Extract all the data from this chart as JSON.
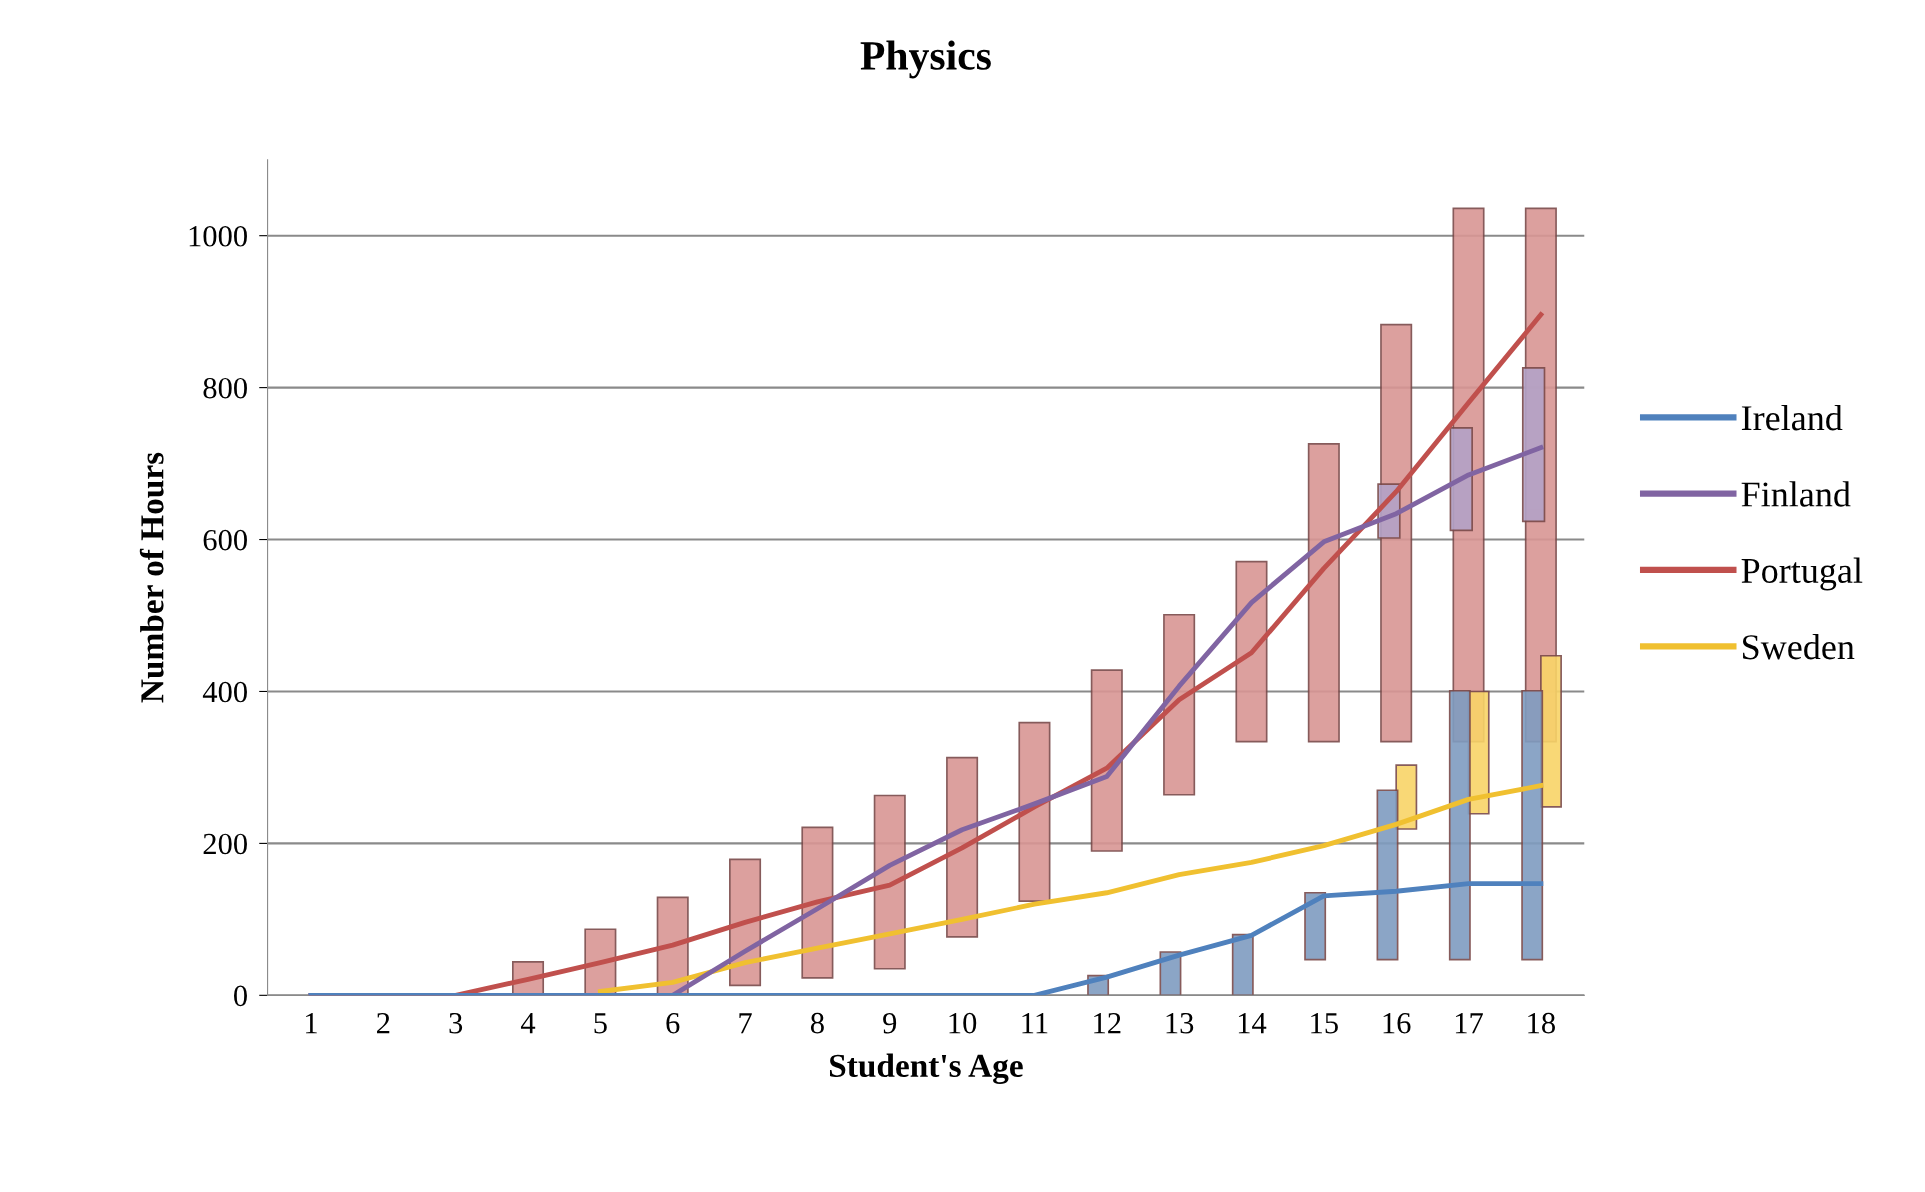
{
  "chart_data": {
    "type": "line",
    "title": "Physics",
    "xlabel": "Student's Age",
    "ylabel": "Number of Hours",
    "categories": [
      "1",
      "2",
      "3",
      "4",
      "5",
      "6",
      "7",
      "8",
      "9",
      "10",
      "11",
      "12",
      "13",
      "14",
      "15",
      "16",
      "17",
      "18"
    ],
    "ylim": [
      0,
      1100
    ],
    "yticks": [
      0,
      200,
      400,
      600,
      800,
      1000
    ],
    "grid": "y",
    "legend": "right",
    "marker": "none",
    "line_style": "solid",
    "series": [
      {
        "type": "bar",
        "color": "#d99694",
        "base": [
          null,
          null,
          null,
          0,
          0,
          0,
          13,
          23,
          35,
          77,
          124,
          190,
          264,
          334,
          334,
          334,
          334,
          334
        ],
        "values": [
          null,
          null,
          null,
          44,
          87,
          129,
          166,
          198,
          228,
          236,
          235,
          238,
          237,
          237,
          392,
          549,
          702,
          702
        ]
      },
      {
        "type": "bar",
        "color": "#b3a2c7",
        "base": [
          null,
          null,
          null,
          null,
          null,
          null,
          null,
          null,
          null,
          null,
          null,
          null,
          null,
          null,
          null,
          602,
          612,
          624
        ],
        "values": [
          null,
          null,
          null,
          null,
          null,
          null,
          null,
          null,
          null,
          null,
          null,
          null,
          null,
          null,
          null,
          71,
          135,
          202
        ]
      },
      {
        "type": "bar",
        "color": "#f9d468",
        "base": [
          null,
          null,
          null,
          null,
          null,
          null,
          null,
          null,
          null,
          null,
          null,
          null,
          null,
          null,
          null,
          219,
          239,
          248
        ],
        "values": [
          null,
          null,
          null,
          null,
          null,
          null,
          null,
          null,
          null,
          null,
          null,
          null,
          null,
          null,
          null,
          84,
          161,
          199
        ]
      },
      {
        "type": "bar",
        "color": "#7f9cc0",
        "base": [
          null,
          null,
          null,
          null,
          null,
          null,
          null,
          null,
          null,
          null,
          null,
          0,
          0,
          0,
          47,
          47,
          47,
          47
        ],
        "values": [
          null,
          null,
          null,
          null,
          null,
          null,
          null,
          null,
          null,
          null,
          null,
          26,
          57,
          80,
          88,
          223,
          354,
          354
        ]
      },
      {
        "name": "Ireland",
        "color": "#4f81bd",
        "values": [
          0,
          0,
          0,
          0,
          0,
          0,
          0,
          0,
          0,
          0,
          0,
          24,
          53,
          79,
          131,
          137,
          147,
          147
        ]
      },
      {
        "name": "Finland",
        "color": "#8064a2",
        "values": [
          0,
          0,
          0,
          0,
          0,
          0,
          58,
          114,
          171,
          218,
          252,
          288,
          407,
          517,
          597,
          634,
          685,
          721
        ]
      },
      {
        "name": "Portugal",
        "color": "#c0504d",
        "values": [
          0,
          0,
          0,
          21,
          43,
          66,
          96,
          123,
          145,
          194,
          248,
          299,
          389,
          451,
          562,
          663,
          780,
          896
        ]
      },
      {
        "name": "Sweden",
        "color": "#f0c030",
        "values": [
          null,
          null,
          null,
          null,
          5,
          17,
          43,
          62,
          81,
          100,
          120,
          135,
          159,
          175,
          197,
          225,
          258,
          276
        ]
      }
    ]
  }
}
